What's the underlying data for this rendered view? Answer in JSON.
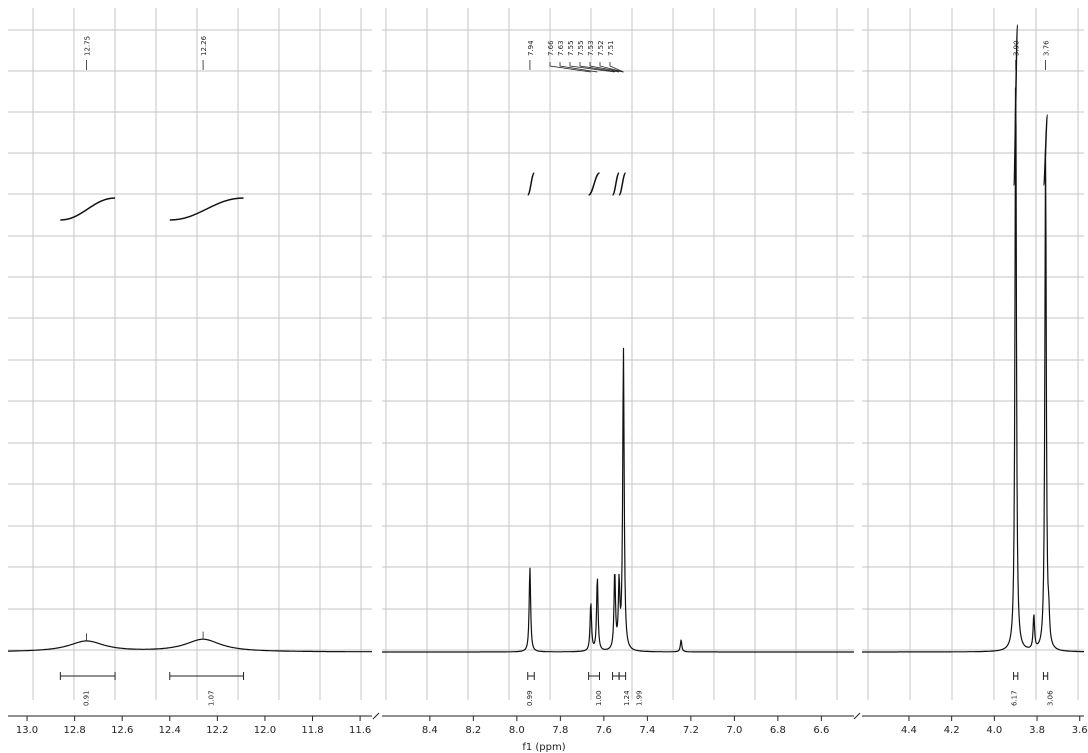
{
  "chart_data": {
    "type": "line",
    "title": "",
    "xlabel": "f1 (ppm)",
    "ylabel": "",
    "x_reversed": true,
    "grid": true,
    "panels": [
      {
        "xlim": [
          13.08,
          11.55
        ],
        "ticks": [
          13.0,
          12.8,
          12.6,
          12.4,
          12.2,
          12.0,
          11.8,
          11.6
        ],
        "tick_labels": [
          "13.0",
          "12.8",
          "12.6",
          "12.4",
          "12.2",
          "12.0",
          "11.8",
          "11.6"
        ],
        "peaks": [
          {
            "ppm": 12.75,
            "height": 0.018,
            "width": 0.09
          },
          {
            "ppm": 12.26,
            "height": 0.021,
            "width": 0.09
          }
        ],
        "peak_labels": [
          "12.75",
          "12.26"
        ],
        "integrals": [
          {
            "from": 12.86,
            "to": 12.63,
            "value": "0.91"
          },
          {
            "from": 12.4,
            "to": 12.09,
            "value": "1.07"
          }
        ]
      },
      {
        "xlim": [
          8.62,
          6.45
        ],
        "ticks": [
          8.4,
          8.2,
          8.0,
          7.8,
          7.6,
          7.4,
          7.2,
          7.0,
          6.8,
          6.6
        ],
        "tick_labels": [
          "8.4",
          "8.2",
          "8.0",
          "7.8",
          "7.6",
          "7.4",
          "7.2",
          "7.0",
          "6.8",
          "6.6"
        ],
        "peaks": [
          {
            "ppm": 7.94,
            "height": 0.143
          },
          {
            "ppm": 7.66,
            "height": 0.082
          },
          {
            "ppm": 7.63,
            "height": 0.125
          },
          {
            "ppm": 7.55,
            "height": 0.131
          },
          {
            "ppm": 7.53,
            "height": 0.108
          },
          {
            "ppm": 7.51,
            "height": 0.51
          },
          {
            "ppm": 7.245,
            "height": 0.02
          }
        ],
        "peak_labels": [
          "7.94",
          "7.66",
          "7.63",
          "7.55",
          "7.55",
          "7.53",
          "7.52",
          "7.51"
        ],
        "integrals": [
          {
            "from": 7.95,
            "to": 7.92,
            "value": "0.99"
          },
          {
            "from": 7.67,
            "to": 7.62,
            "value": "1.00"
          },
          {
            "from": 7.56,
            "to": 7.53,
            "value": "1.24"
          },
          {
            "from": 7.53,
            "to": 7.5,
            "value": "1.99"
          }
        ]
      },
      {
        "xlim": [
          4.62,
          3.58
        ],
        "ticks": [
          4.4,
          4.2,
          4.0,
          3.8,
          3.6
        ],
        "tick_labels": [
          "4.4",
          "4.2",
          "4.0",
          "3.8",
          "3.6"
        ],
        "peaks": [
          {
            "ppm": 3.9,
            "height": 1.0
          },
          {
            "ppm": 3.815,
            "height": 0.058
          },
          {
            "ppm": 3.76,
            "height": 0.85
          },
          {
            "ppm": 3.745,
            "height": 0.04
          }
        ],
        "peak_labels": [
          "3.90",
          "3.76"
        ],
        "integrals": [
          {
            "from": 3.91,
            "to": 3.89,
            "value": "6.17"
          },
          {
            "from": 3.77,
            "to": 3.75,
            "value": "3.06"
          }
        ]
      }
    ]
  }
}
